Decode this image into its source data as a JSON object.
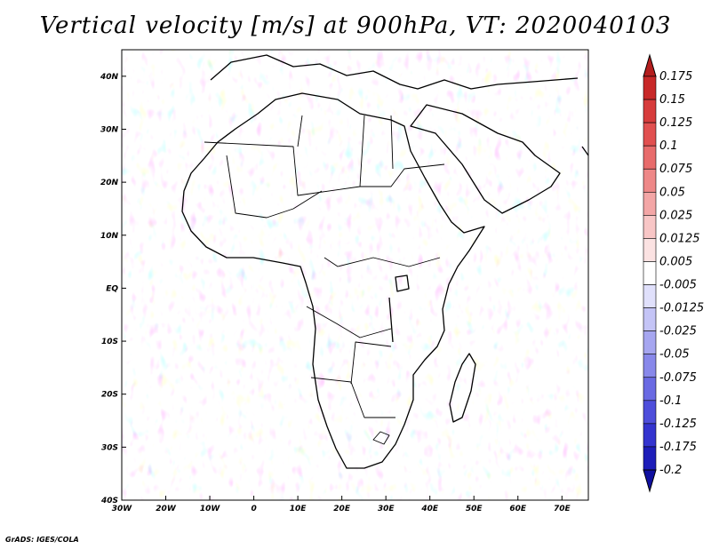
{
  "title": "Vertical velocity [m/s] at 900hPa, VT: 2020040103",
  "footer": "GrADS: IGES/COLA",
  "lat_ticks": [
    "40N",
    "30N",
    "20N",
    "10N",
    "EQ",
    "10S",
    "20S",
    "30S",
    "40S"
  ],
  "lat_values": [
    40,
    30,
    20,
    10,
    0,
    -10,
    -20,
    -30,
    -40
  ],
  "lon_ticks": [
    "30W",
    "20W",
    "10W",
    "0",
    "10E",
    "20E",
    "30E",
    "40E",
    "50E",
    "60E",
    "70E"
  ],
  "lon_values": [
    -30,
    -20,
    -10,
    0,
    10,
    20,
    30,
    40,
    50,
    60,
    70
  ],
  "extent": {
    "lon_min": -30,
    "lon_max": 76,
    "lat_min": -40,
    "lat_max": 45
  },
  "colorbar": {
    "labels": [
      "0.175",
      "0.15",
      "0.125",
      "0.1",
      "0.075",
      "0.05",
      "0.025",
      "0.0125",
      "0.005",
      "-0.005",
      "-0.0125",
      "-0.025",
      "-0.05",
      "-0.075",
      "-0.1",
      "-0.125",
      "-0.175",
      "-0.2"
    ],
    "colors": [
      "#b41e1e",
      "#c82828",
      "#d73c3c",
      "#e15050",
      "#e86c6c",
      "#ee8888",
      "#f3a6a6",
      "#f8c6c6",
      "#fbe2e2",
      "#ffffff",
      "#e0e0fb",
      "#c4c4f6",
      "#a6a6f0",
      "#8888ea",
      "#6a6ae3",
      "#4e4edb",
      "#3434cf",
      "#1e1eb9",
      "#1010a0"
    ]
  }
}
